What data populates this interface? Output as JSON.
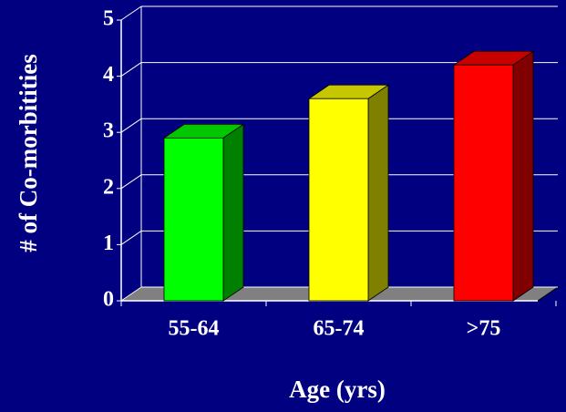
{
  "chart_data": {
    "type": "bar3d",
    "x_label": "Age (yrs)",
    "y_label": "# of Co-morbitities",
    "categories": [
      "55-64",
      "65-74",
      ">75"
    ],
    "values": [
      2.9,
      3.6,
      4.2
    ],
    "colors": [
      "#00ff00",
      "#ffff00",
      "#ff0000"
    ],
    "ylim": [
      0,
      5
    ],
    "yticks": [
      0,
      1,
      2,
      3,
      4,
      5
    ],
    "grid": true
  }
}
